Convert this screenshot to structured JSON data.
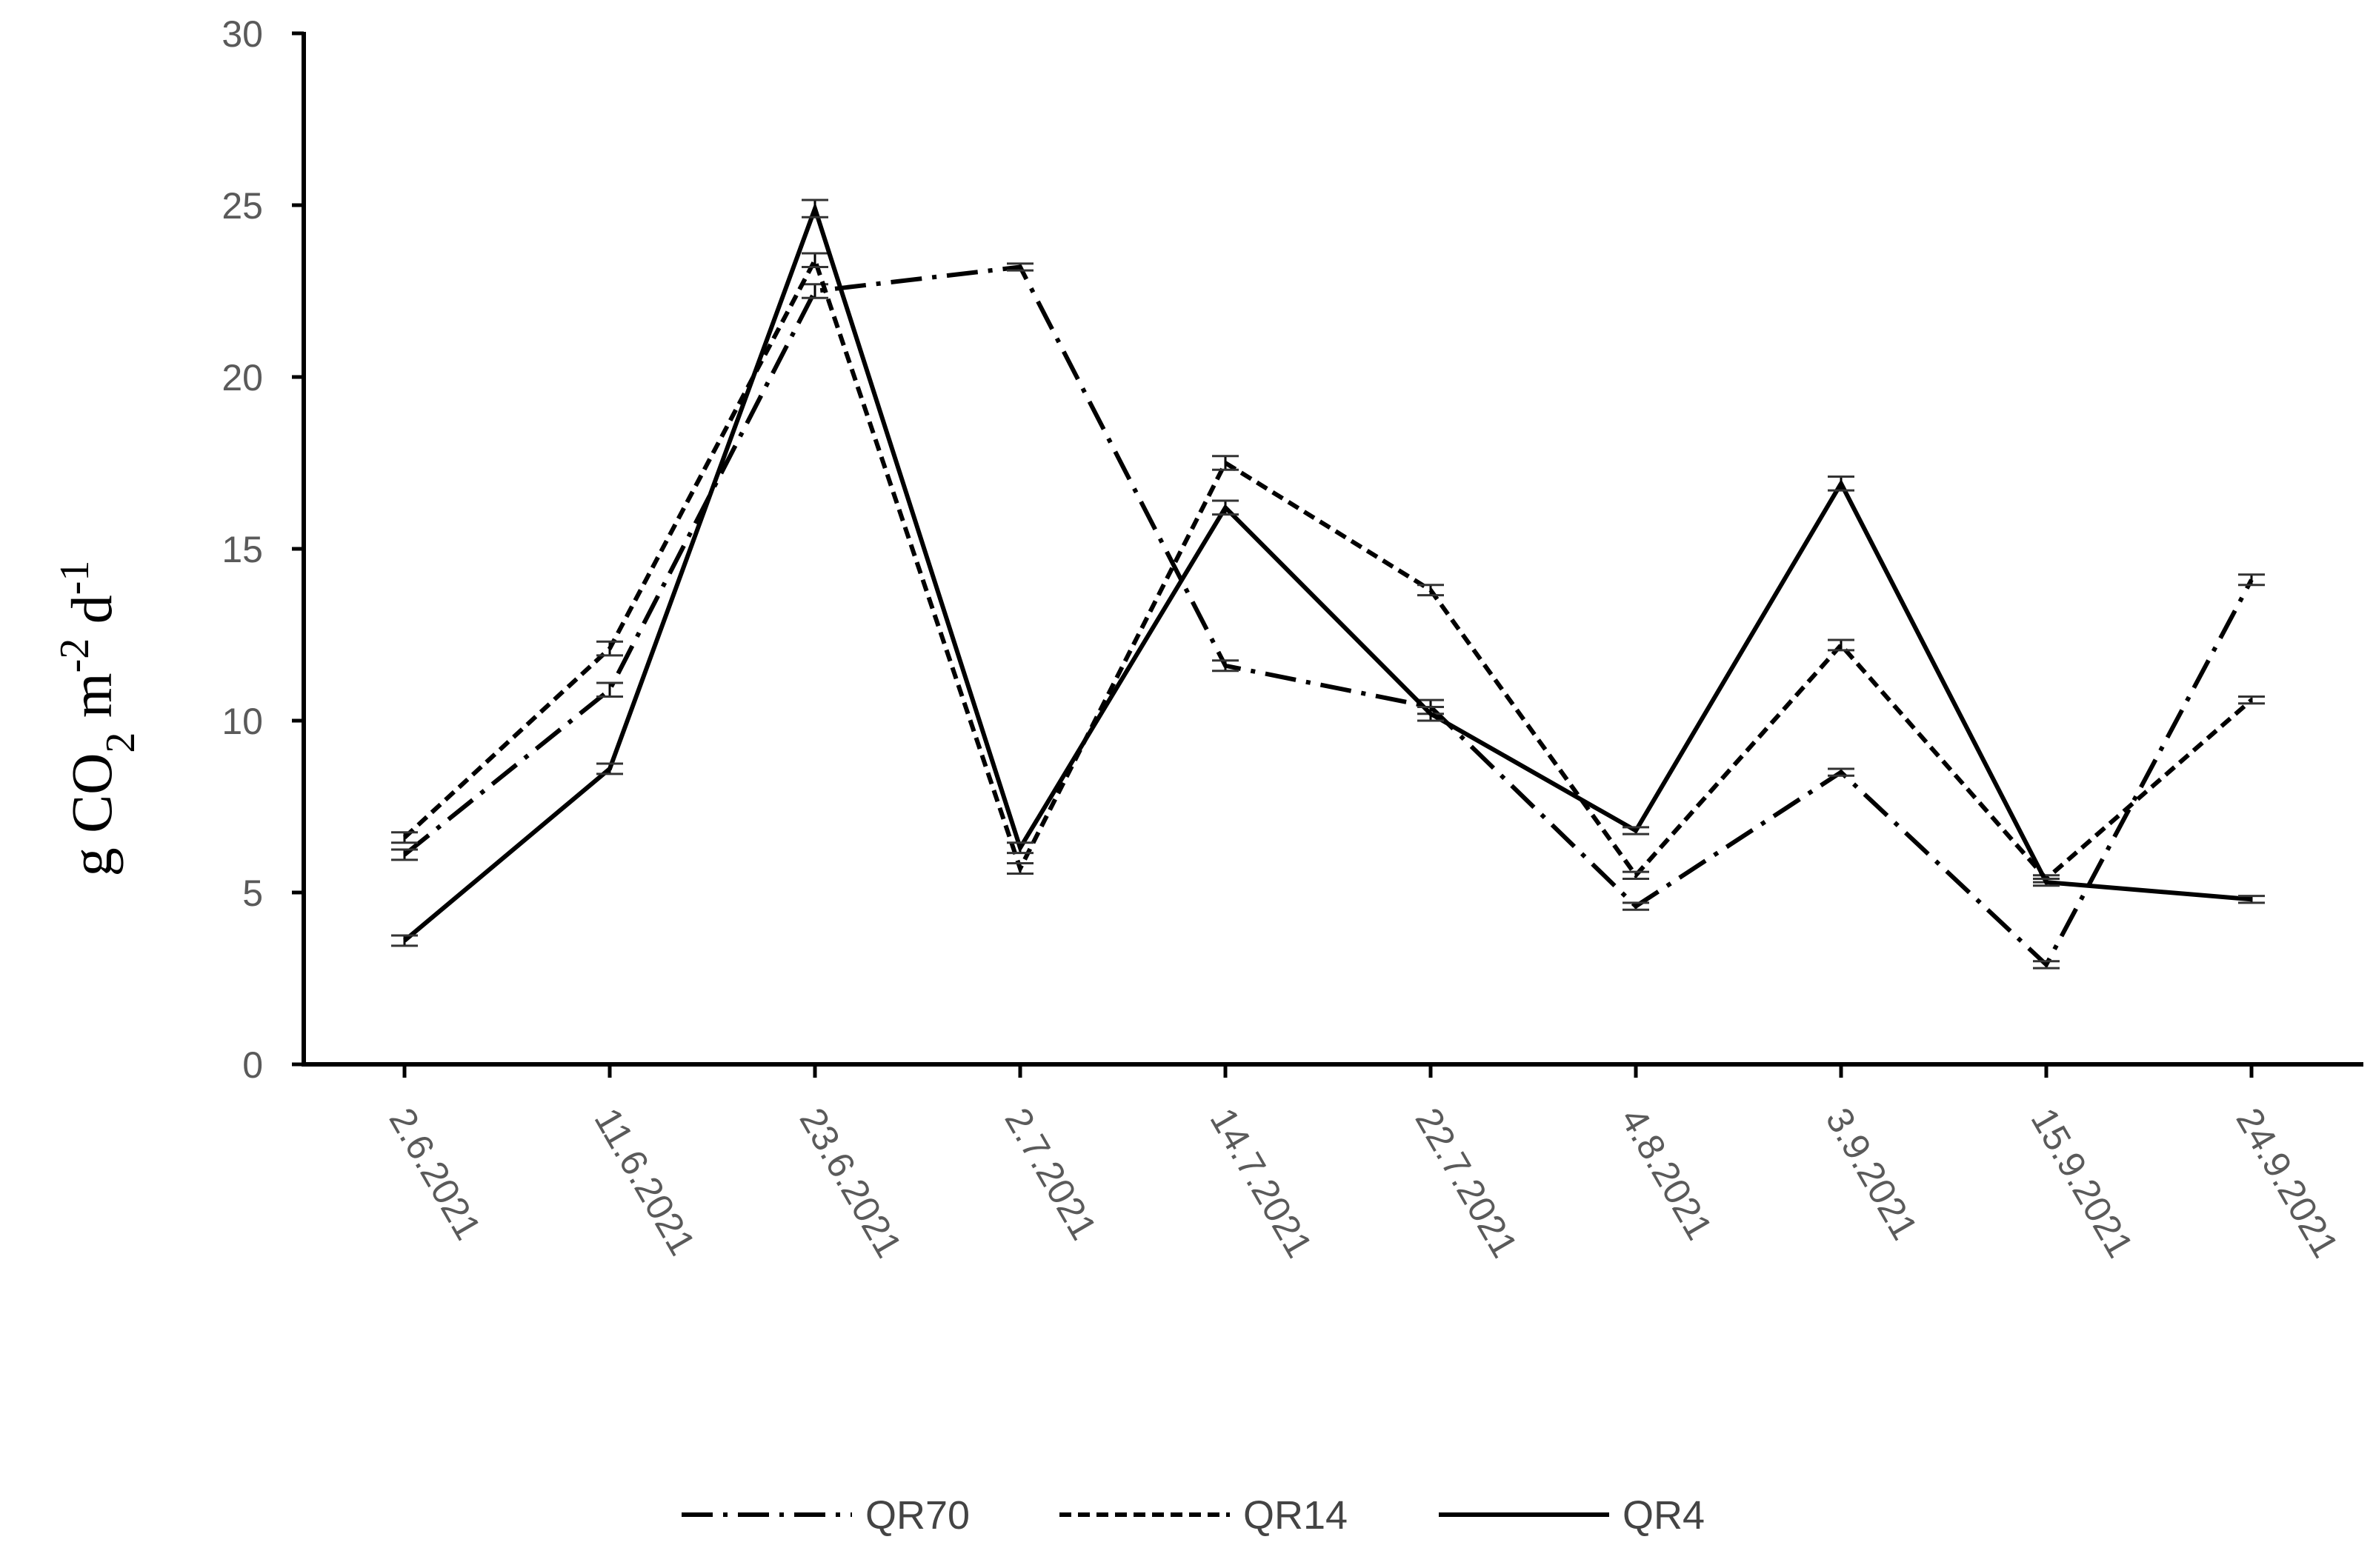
{
  "chart_data": {
    "type": "line",
    "categories": [
      "2.6.2021",
      "11.6.2021",
      "23.6.2021",
      "2.7.2021",
      "14.7.2021",
      "22.7.2021",
      "4.8.2021",
      "3.9.2021",
      "15.9.2021",
      "24.9.2021"
    ],
    "ylabel": {
      "base": "g CO",
      "subscript": "2",
      "m_unit": " m",
      "m_exp": "-2",
      "d_unit": " d",
      "d_exp": "-1"
    },
    "ylim": [
      0,
      30
    ],
    "yticks": [
      0,
      5,
      10,
      15,
      20,
      25,
      30
    ],
    "grid": false,
    "legend_position": "bottom",
    "series": [
      {
        "name": "QR70",
        "dash": "dash-dot",
        "values": [
          6.1,
          10.9,
          22.5,
          23.2,
          11.6,
          10.4,
          4.6,
          8.5,
          2.9,
          14.1
        ],
        "errors": [
          0.15,
          0.2,
          0.2,
          0.1,
          0.15,
          0.2,
          0.1,
          0.1,
          0.1,
          0.15
        ]
      },
      {
        "name": "QR14",
        "dash": "dashed",
        "values": [
          6.6,
          12.1,
          23.4,
          5.7,
          17.5,
          13.8,
          5.5,
          12.2,
          5.4,
          10.6
        ],
        "errors": [
          0.15,
          0.2,
          0.2,
          0.15,
          0.2,
          0.15,
          0.1,
          0.15,
          0.1,
          0.1
        ]
      },
      {
        "name": "QR4",
        "dash": "solid",
        "values": [
          3.6,
          8.6,
          24.9,
          6.3,
          16.2,
          10.2,
          6.8,
          16.9,
          5.3,
          4.8
        ],
        "errors": [
          0.15,
          0.15,
          0.25,
          0.15,
          0.2,
          0.2,
          0.1,
          0.2,
          0.1,
          0.1
        ]
      }
    ]
  }
}
